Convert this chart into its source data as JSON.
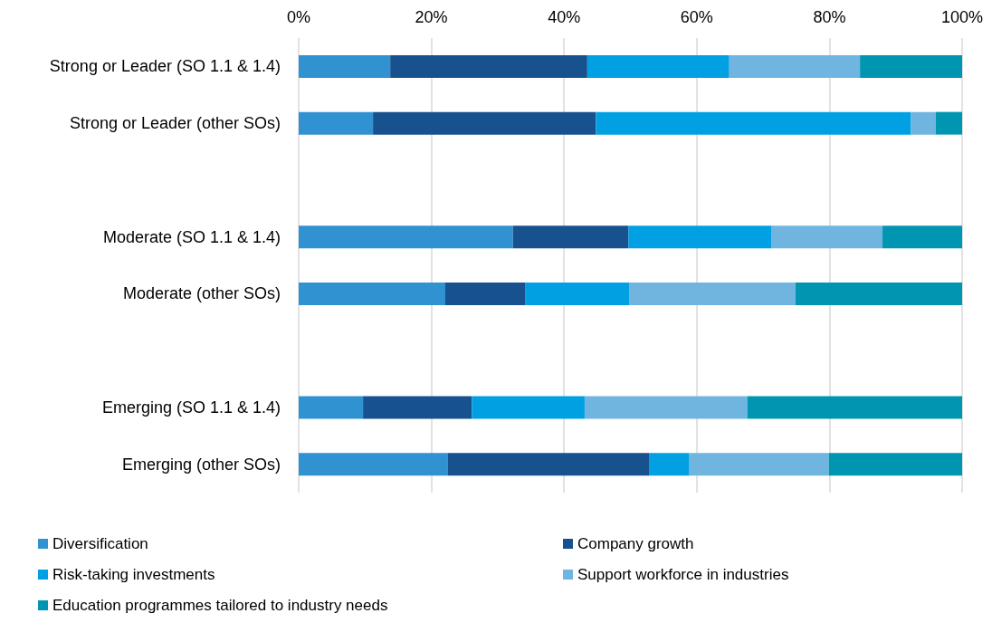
{
  "chart_data": {
    "type": "bar",
    "orientation": "horizontal",
    "stacked": true,
    "categories": [
      "Strong or Leader (SO 1.1 & 1.4)",
      "Strong or Leader (other SOs)",
      null,
      "Moderate (SO 1.1 & 1.4)",
      "Moderate (other SOs)",
      null,
      "Emerging (SO 1.1 & 1.4)",
      "Emerging (other SOs)"
    ],
    "series": [
      {
        "name": "Diversification",
        "color": "#3092d0",
        "values": [
          13.8,
          11.2,
          null,
          32.3,
          22.1,
          null,
          9.7,
          22.5
        ]
      },
      {
        "name": "Company growth",
        "color": "#17528f",
        "values": [
          29.7,
          33.6,
          null,
          17.4,
          12.1,
          null,
          16.4,
          30.3
        ]
      },
      {
        "name": "Risk-taking investments",
        "color": "#00a0e3",
        "values": [
          21.4,
          47.5,
          null,
          21.6,
          15.6,
          null,
          17.0,
          6.0
        ]
      },
      {
        "name": "Support workforce in industries",
        "color": "#6fb5e0",
        "values": [
          19.7,
          3.7,
          null,
          16.7,
          25.1,
          null,
          24.5,
          21.1
        ]
      },
      {
        "name": "Education programmes tailored to industry needs",
        "color": "#0096b1",
        "values": [
          15.4,
          4.0,
          null,
          12.0,
          25.1,
          null,
          32.4,
          20.1
        ]
      }
    ],
    "xlim": [
      0,
      100
    ],
    "xticks": [
      {
        "value": 0,
        "label": "0%"
      },
      {
        "value": 20,
        "label": "20%"
      },
      {
        "value": 40,
        "label": "40%"
      },
      {
        "value": 60,
        "label": "60%"
      },
      {
        "value": 80,
        "label": "80%"
      },
      {
        "value": 100,
        "label": "100%"
      }
    ],
    "grid": "x",
    "legend": "bottom"
  }
}
